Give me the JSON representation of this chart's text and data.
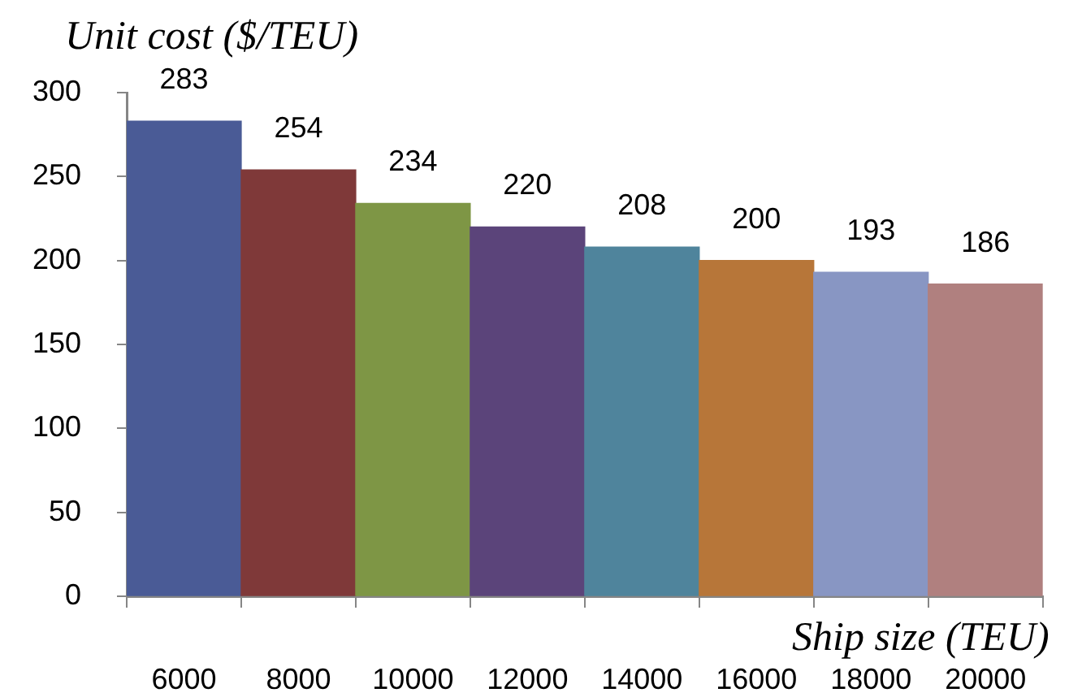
{
  "chart_data": {
    "type": "bar",
    "xlabel": "Ship size (TEU)",
    "ylabel": "Unit cost ($/TEU)",
    "categories": [
      "6000",
      "8000",
      "10000",
      "12000",
      "14000",
      "16000",
      "18000",
      "20000"
    ],
    "values": [
      283,
      254,
      234,
      220,
      208,
      200,
      193,
      186
    ],
    "colors": [
      "#4a5b96",
      "#7f3939",
      "#7e9645",
      "#5b447a",
      "#4f849c",
      "#b77639",
      "#8896c3",
      "#b0807f"
    ],
    "ylim": [
      0,
      300
    ],
    "yticks": [
      0,
      50,
      100,
      150,
      200,
      250,
      300
    ],
    "data_labels": true
  }
}
